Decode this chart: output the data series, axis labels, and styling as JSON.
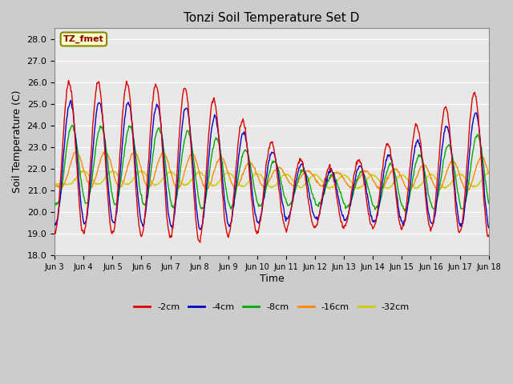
{
  "title": "Tonzi Soil Temperature Set D",
  "xlabel": "Time",
  "ylabel": "Soil Temperature (C)",
  "ylim": [
    18.0,
    28.5
  ],
  "yticks": [
    18.0,
    19.0,
    20.0,
    21.0,
    22.0,
    23.0,
    24.0,
    25.0,
    26.0,
    27.0,
    28.0
  ],
  "bg_color": "#cccccc",
  "plot_bg_color": "#e8e8e8",
  "legend_label": "TZ_fmet",
  "legend_bg": "#ffffcc",
  "legend_border": "#888800",
  "series_colors": [
    "#dd0000",
    "#0000cc",
    "#00aa00",
    "#ff8800",
    "#cccc00"
  ],
  "series_labels": [
    "-2cm",
    "-4cm",
    "-8cm",
    "-16cm",
    "-32cm"
  ],
  "x_tick_labels": [
    "Jun 3",
    "Jun 4",
    "Jun 5",
    "Jun 6",
    "Jun 7",
    "Jun 8",
    "Jun 9",
    "Jun 10",
    "Jun 11",
    "Jun 12",
    "Jun 13",
    "Jun 14",
    "Jun 15",
    "Jun 16",
    "Jun 17",
    "Jun 18"
  ]
}
